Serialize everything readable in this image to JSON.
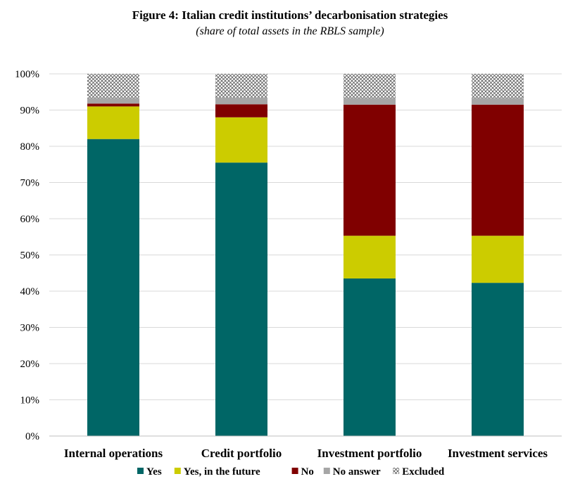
{
  "chart_data": {
    "type": "bar",
    "stacked": true,
    "title": "Figure 4: Italian credit institutions’ decarbonisation strategies",
    "subtitle": "(share of total assets in the RBLS sample)",
    "categories": [
      "Internal operations",
      "Credit portfolio",
      "Investment portfolio",
      "Investment services"
    ],
    "series": [
      {
        "name": "Yes",
        "color": "#006666",
        "values": [
          82,
          75.5,
          43.5,
          42.3
        ]
      },
      {
        "name": "Yes, in the future",
        "color": "#cccc00",
        "values": [
          9,
          12.5,
          11.8,
          13
        ]
      },
      {
        "name": "No",
        "color": "#800000",
        "values": [
          0.8,
          3.6,
          36.2,
          36.2
        ]
      },
      {
        "name": "No answer",
        "color": "#a6a6a6",
        "values": [
          1.5,
          1.8,
          1.8,
          1.8
        ]
      },
      {
        "name": "Excluded",
        "color": "hatch",
        "values": [
          6.7,
          6.6,
          6.7,
          6.7
        ]
      }
    ],
    "ylim": [
      0,
      100
    ],
    "yticks": [
      "0%",
      "10%",
      "20%",
      "30%",
      "40%",
      "50%",
      "60%",
      "70%",
      "80%",
      "90%",
      "100%"
    ],
    "grid": true,
    "legend": "bottom"
  }
}
